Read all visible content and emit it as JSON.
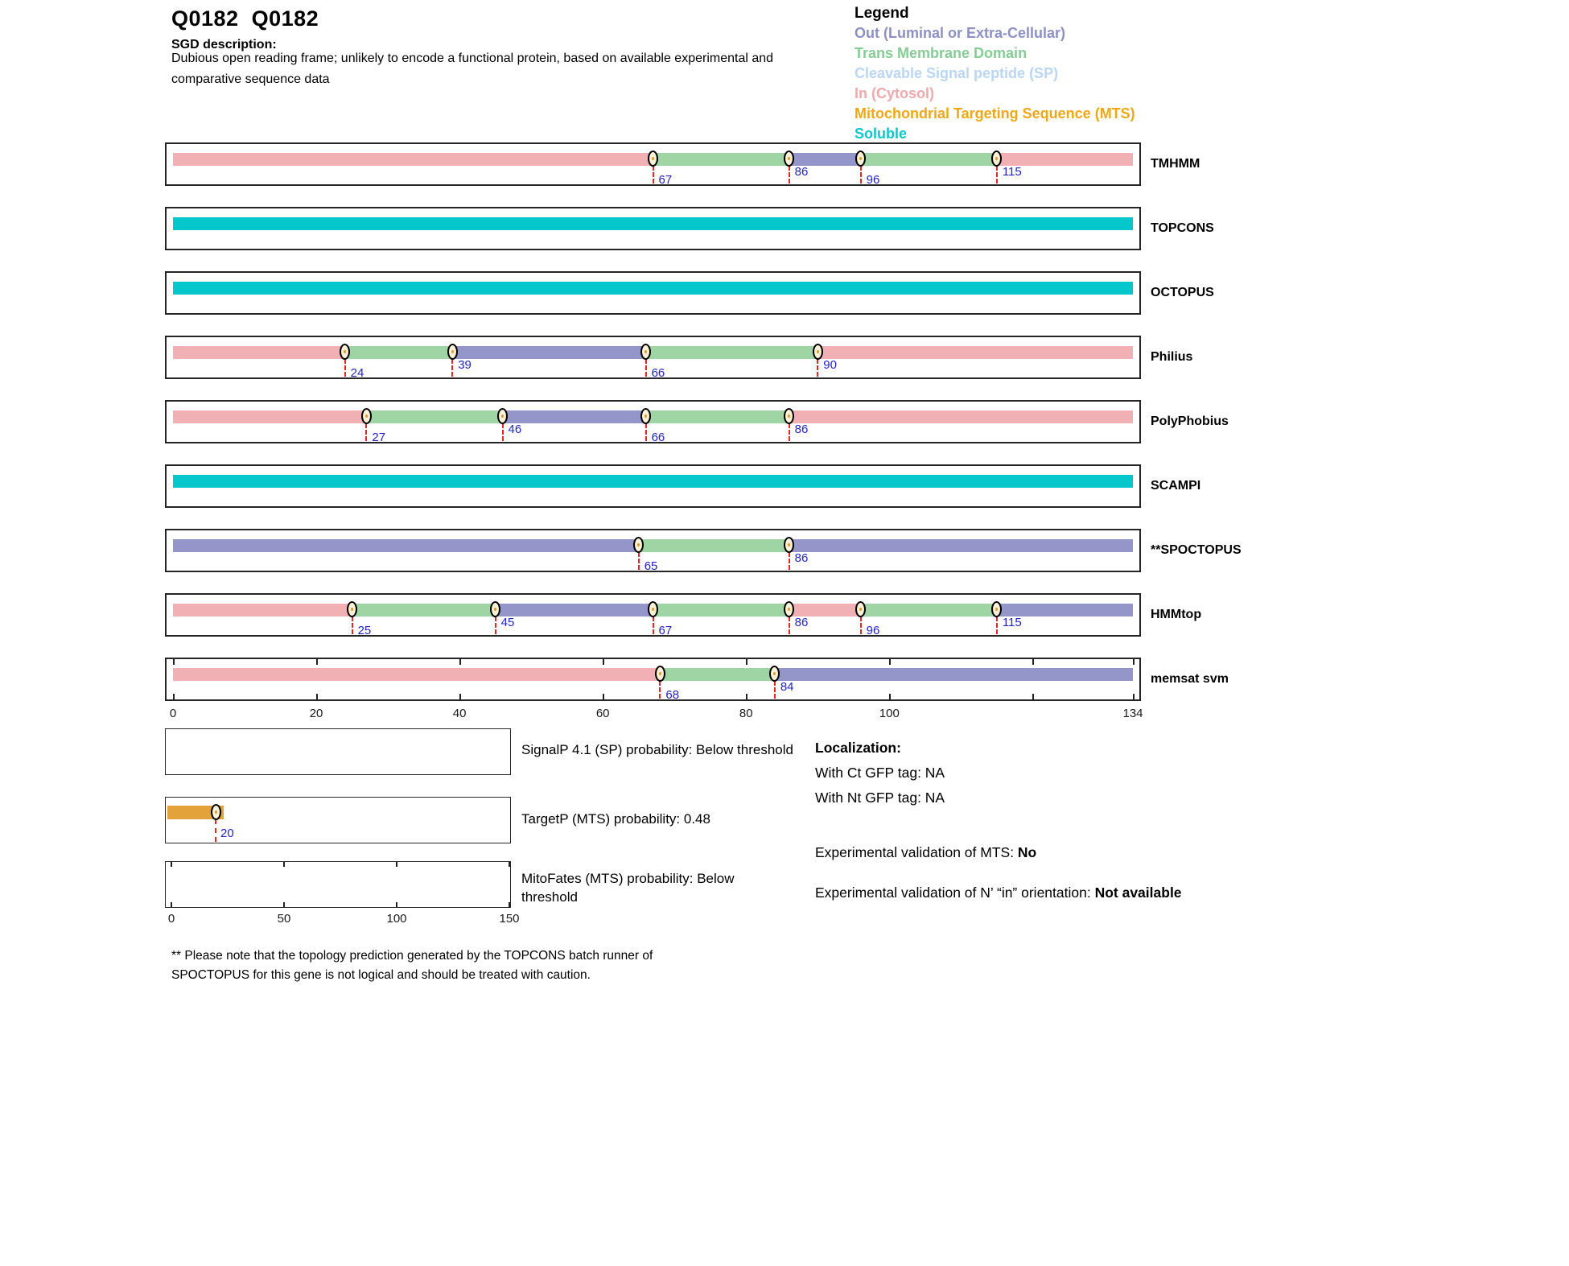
{
  "header": {
    "title": "Q0182  Q0182",
    "sgd_label": "SGD description:",
    "description_line1": "Dubious open reading frame; unlikely to encode a functional protein, based on available experimental and",
    "description_line2": "comparative sequence data"
  },
  "legend": {
    "title": "Legend",
    "items": [
      {
        "key": "out",
        "label": "Out (Luminal or Extra-Cellular)",
        "color": "#8d90c6"
      },
      {
        "key": "tm",
        "label": "Trans Membrane Domain",
        "color": "#85cc95"
      },
      {
        "key": "sp",
        "label": "Cleavable Signal peptide (SP)",
        "color": "#bad6f4"
      },
      {
        "key": "in",
        "label": "In (Cytosol)",
        "color": "#f1a8ad"
      },
      {
        "key": "mts",
        "label": "Mitochondrial Targeting Sequence (MTS)",
        "color": "#f0a714"
      },
      {
        "key": "soluble",
        "label": "Soluble",
        "color": "#0ac6cd"
      }
    ]
  },
  "colors": {
    "in": "#f1b0b4",
    "tm": "#9fd4a4",
    "out": "#9496c9",
    "soluble": "#06c7cb",
    "mts": "#e4a33a",
    "marker_fill": "#fdf2d6",
    "marker_dot": "#e09a30",
    "dash_red": "#ea2323",
    "number_blue": "#2222cf"
  },
  "chart_data": {
    "type": "bar",
    "title": "Membrane topology predictions for Q0182 (sequence length 134 aa)",
    "axis": {
      "min": 0,
      "max": 134,
      "ticks": [
        0,
        20,
        40,
        60,
        80,
        100,
        134
      ],
      "tick_marks": [
        0,
        20,
        40,
        60,
        80,
        100,
        120,
        134
      ]
    },
    "tracks": [
      {
        "name": "TMHMM",
        "markers": [
          67,
          86,
          96,
          115
        ],
        "segments": [
          {
            "start": 0,
            "end": 67,
            "type": "in"
          },
          {
            "start": 67,
            "end": 86,
            "type": "tm"
          },
          {
            "start": 86,
            "end": 96,
            "type": "out"
          },
          {
            "start": 96,
            "end": 115,
            "type": "tm"
          },
          {
            "start": 115,
            "end": 134,
            "type": "in"
          }
        ]
      },
      {
        "name": "TOPCONS",
        "markers": [],
        "segments": [
          {
            "start": 0,
            "end": 134,
            "type": "soluble"
          }
        ]
      },
      {
        "name": "OCTOPUS",
        "markers": [],
        "segments": [
          {
            "start": 0,
            "end": 134,
            "type": "soluble"
          }
        ]
      },
      {
        "name": "Philius",
        "markers": [
          24,
          39,
          66,
          90
        ],
        "segments": [
          {
            "start": 0,
            "end": 24,
            "type": "in"
          },
          {
            "start": 24,
            "end": 39,
            "type": "tm"
          },
          {
            "start": 39,
            "end": 66,
            "type": "out"
          },
          {
            "start": 66,
            "end": 90,
            "type": "tm"
          },
          {
            "start": 90,
            "end": 134,
            "type": "in"
          }
        ]
      },
      {
        "name": "PolyPhobius",
        "markers": [
          27,
          46,
          66,
          86
        ],
        "segments": [
          {
            "start": 0,
            "end": 27,
            "type": "in"
          },
          {
            "start": 27,
            "end": 46,
            "type": "tm"
          },
          {
            "start": 46,
            "end": 66,
            "type": "out"
          },
          {
            "start": 66,
            "end": 86,
            "type": "tm"
          },
          {
            "start": 86,
            "end": 134,
            "type": "in"
          }
        ]
      },
      {
        "name": "SCAMPI",
        "markers": [],
        "segments": [
          {
            "start": 0,
            "end": 134,
            "type": "soluble"
          }
        ]
      },
      {
        "name": "**SPOCTOPUS",
        "markers": [
          65,
          86
        ],
        "segments": [
          {
            "start": 0,
            "end": 65,
            "type": "out"
          },
          {
            "start": 65,
            "end": 86,
            "type": "tm"
          },
          {
            "start": 86,
            "end": 134,
            "type": "out"
          }
        ]
      },
      {
        "name": "HMMtop",
        "markers": [
          25,
          45,
          67,
          86,
          96,
          115
        ],
        "segments": [
          {
            "start": 0,
            "end": 25,
            "type": "in"
          },
          {
            "start": 25,
            "end": 45,
            "type": "tm"
          },
          {
            "start": 45,
            "end": 67,
            "type": "out"
          },
          {
            "start": 67,
            "end": 86,
            "type": "tm"
          },
          {
            "start": 86,
            "end": 96,
            "type": "in"
          },
          {
            "start": 96,
            "end": 115,
            "type": "tm"
          },
          {
            "start": 115,
            "end": 134,
            "type": "out"
          }
        ],
        "has_ticks": false
      },
      {
        "name": "memsat svm",
        "markers": [
          68,
          84
        ],
        "segments": [
          {
            "start": 0,
            "end": 68,
            "type": "in"
          },
          {
            "start": 68,
            "end": 84,
            "type": "tm"
          },
          {
            "start": 84,
            "end": 134,
            "type": "out"
          }
        ],
        "has_ticks": true
      }
    ],
    "probability": {
      "axis": {
        "min": 0,
        "max": 150,
        "ticks": [
          0,
          50,
          100,
          150
        ]
      },
      "rows": [
        {
          "name": "SignalP",
          "label": "SignalP 4.1 (SP) probability: Below threshold",
          "bar": null,
          "has_ticks": false,
          "wrap": false
        },
        {
          "name": "TargetP",
          "label": "TargetP (MTS) probability: 0.48",
          "bar": {
            "start": 0,
            "end": 23,
            "marker": 20,
            "marker_label": "20",
            "type": "mts"
          },
          "has_ticks": false,
          "wrap": false
        },
        {
          "name": "MitoFates",
          "label": "MitoFates (MTS) probability: Below threshold",
          "bar": null,
          "has_ticks": true,
          "wrap": true
        }
      ]
    }
  },
  "info": {
    "localization_title": "Localization:",
    "ct_gfp": "With Ct GFP tag: NA",
    "nt_gfp": "With Nt GFP tag: NA",
    "mts_validation_label": "Experimental validation of MTS: ",
    "mts_validation_value": "No",
    "orientation_label": "Experimental validation of N’ “in” orientation: ",
    "orientation_value": "Not available"
  },
  "footnote": {
    "line1": "** Please note that the topology prediction generated by the TOPCONS batch runner of",
    "line2": "SPOCTOPUS for this gene is not logical and should be treated with caution."
  }
}
